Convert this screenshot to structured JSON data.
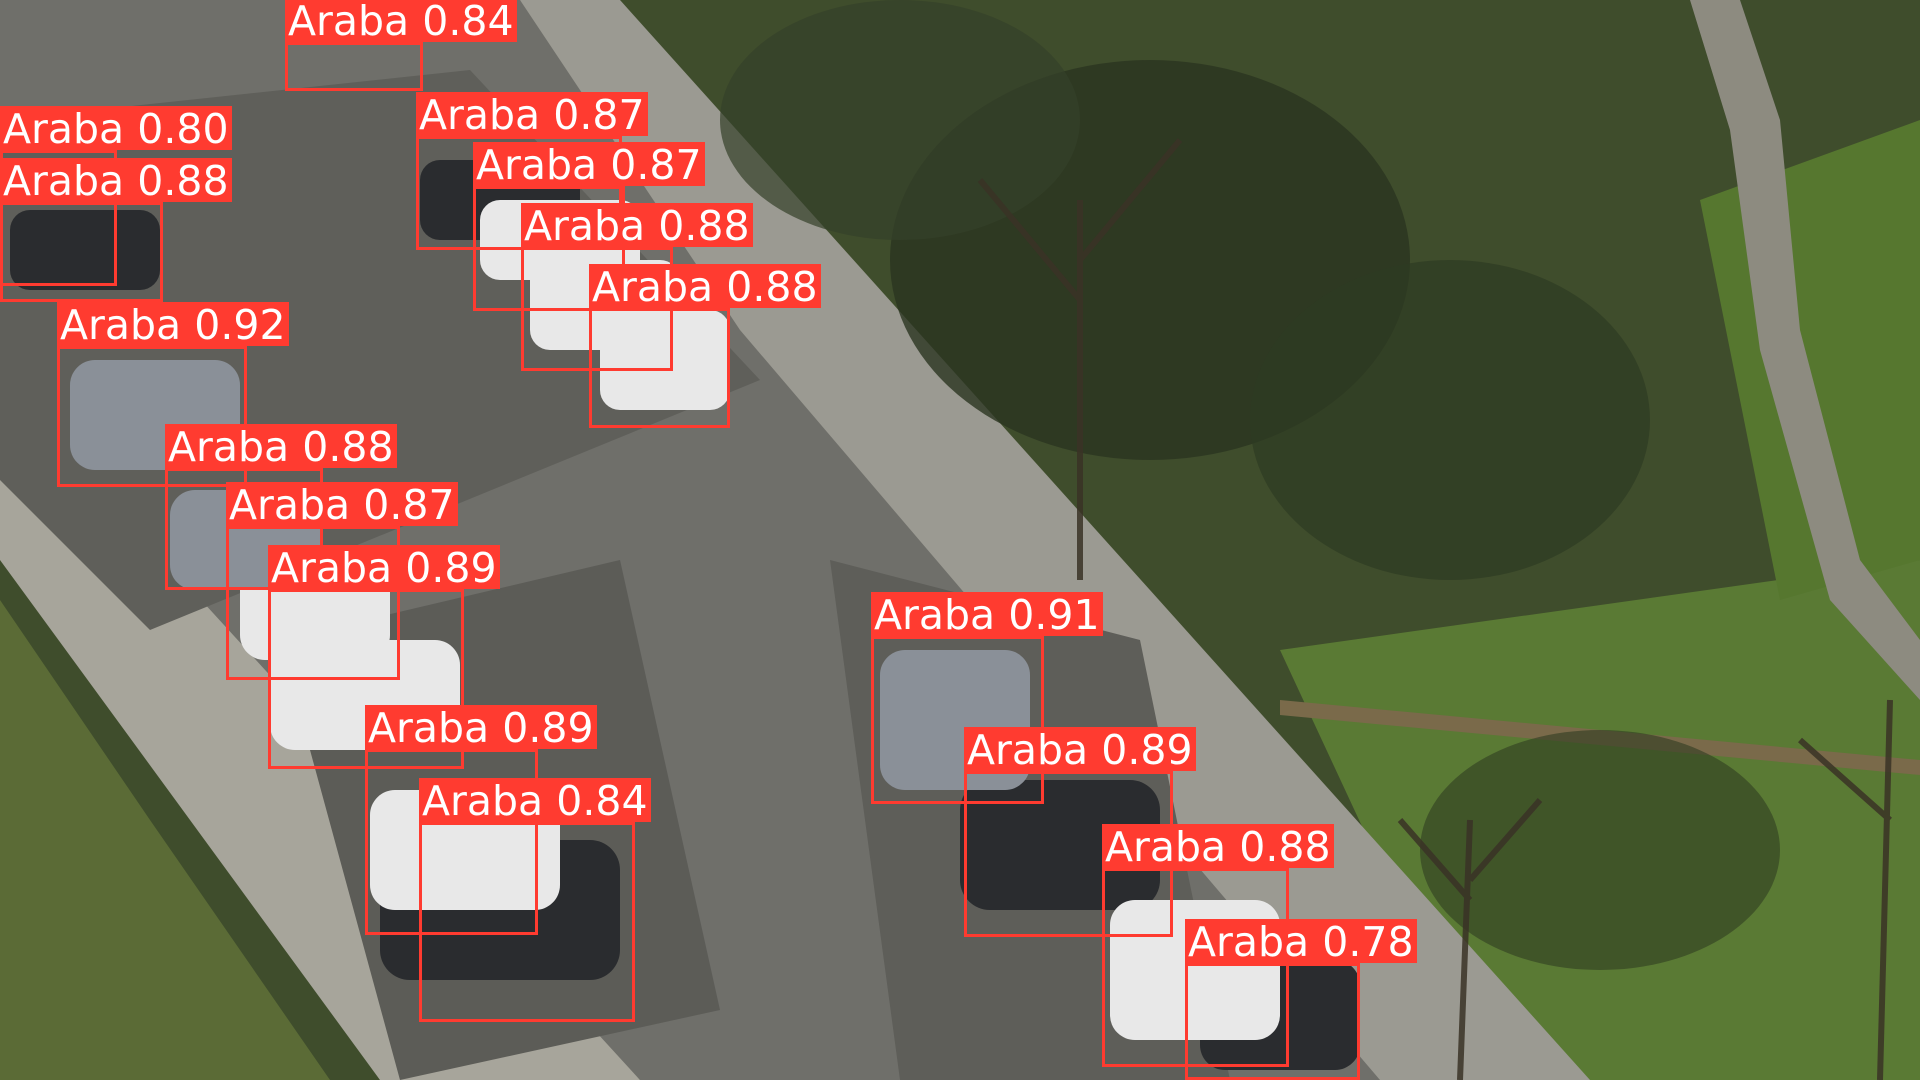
{
  "detections": [
    {
      "label": "Araba",
      "score": "0.84"
    },
    {
      "label": "Araba",
      "score": "0.87"
    },
    {
      "label": "Araba",
      "score": "0.80"
    },
    {
      "label": "Araba",
      "score": "0.88"
    },
    {
      "label": "Araba",
      "score": "0.87"
    },
    {
      "label": "Araba",
      "score": "0.88"
    },
    {
      "label": "Araba",
      "score": "0.88"
    },
    {
      "label": "Araba",
      "score": "0.92"
    },
    {
      "label": "Araba",
      "score": "0.88"
    },
    {
      "label": "Araba",
      "score": "0.87"
    },
    {
      "label": "Araba",
      "score": "0.89"
    },
    {
      "label": "Araba",
      "score": "0.91"
    },
    {
      "label": "Araba",
      "score": "0.89"
    },
    {
      "label": "Araba",
      "score": "0.89"
    },
    {
      "label": "Araba",
      "score": "0.84"
    },
    {
      "label": "Araba",
      "score": "0.88"
    },
    {
      "label": "Araba",
      "score": "0.78"
    }
  ],
  "box_color": "#ff3b30",
  "label_text_color": "#ffffff"
}
